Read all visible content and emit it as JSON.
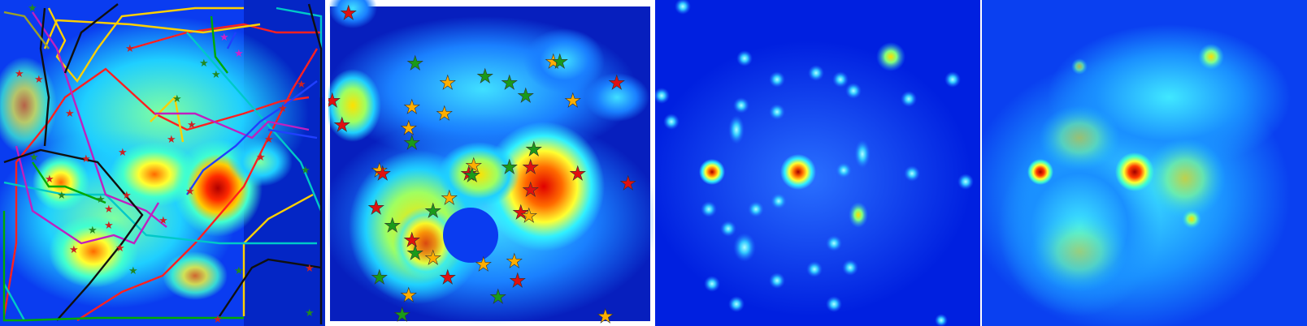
{
  "figure": {
    "panel_count": 4,
    "colormap": "jet",
    "colors": {
      "background_low": "#00008f",
      "mid_low": "#0a4bff",
      "mid": "#22dcff",
      "mid_high": "#ffff30",
      "high": "#ff6a00",
      "peak": "#c00000"
    }
  },
  "panels": [
    {
      "id": "panel-1",
      "description_tag": "heatmap-with-transit-routes",
      "star_colors": [
        "#cc2222",
        "#228822",
        "#cc22cc"
      ],
      "route_colors": [
        "#ff2020",
        "#00aa00",
        "#ffd000",
        "#00c8c8",
        "#c020c0",
        "#101010",
        "#2040ff",
        "#9aa02a"
      ]
    },
    {
      "id": "panel-2",
      "description_tag": "heatmap-with-stars",
      "star_colors": [
        "#e01010",
        "#1a9a1a",
        "#ffae00"
      ]
    },
    {
      "id": "panel-3",
      "description_tag": "density-hotspots"
    },
    {
      "id": "panel-4",
      "description_tag": "diffused-density"
    }
  ]
}
